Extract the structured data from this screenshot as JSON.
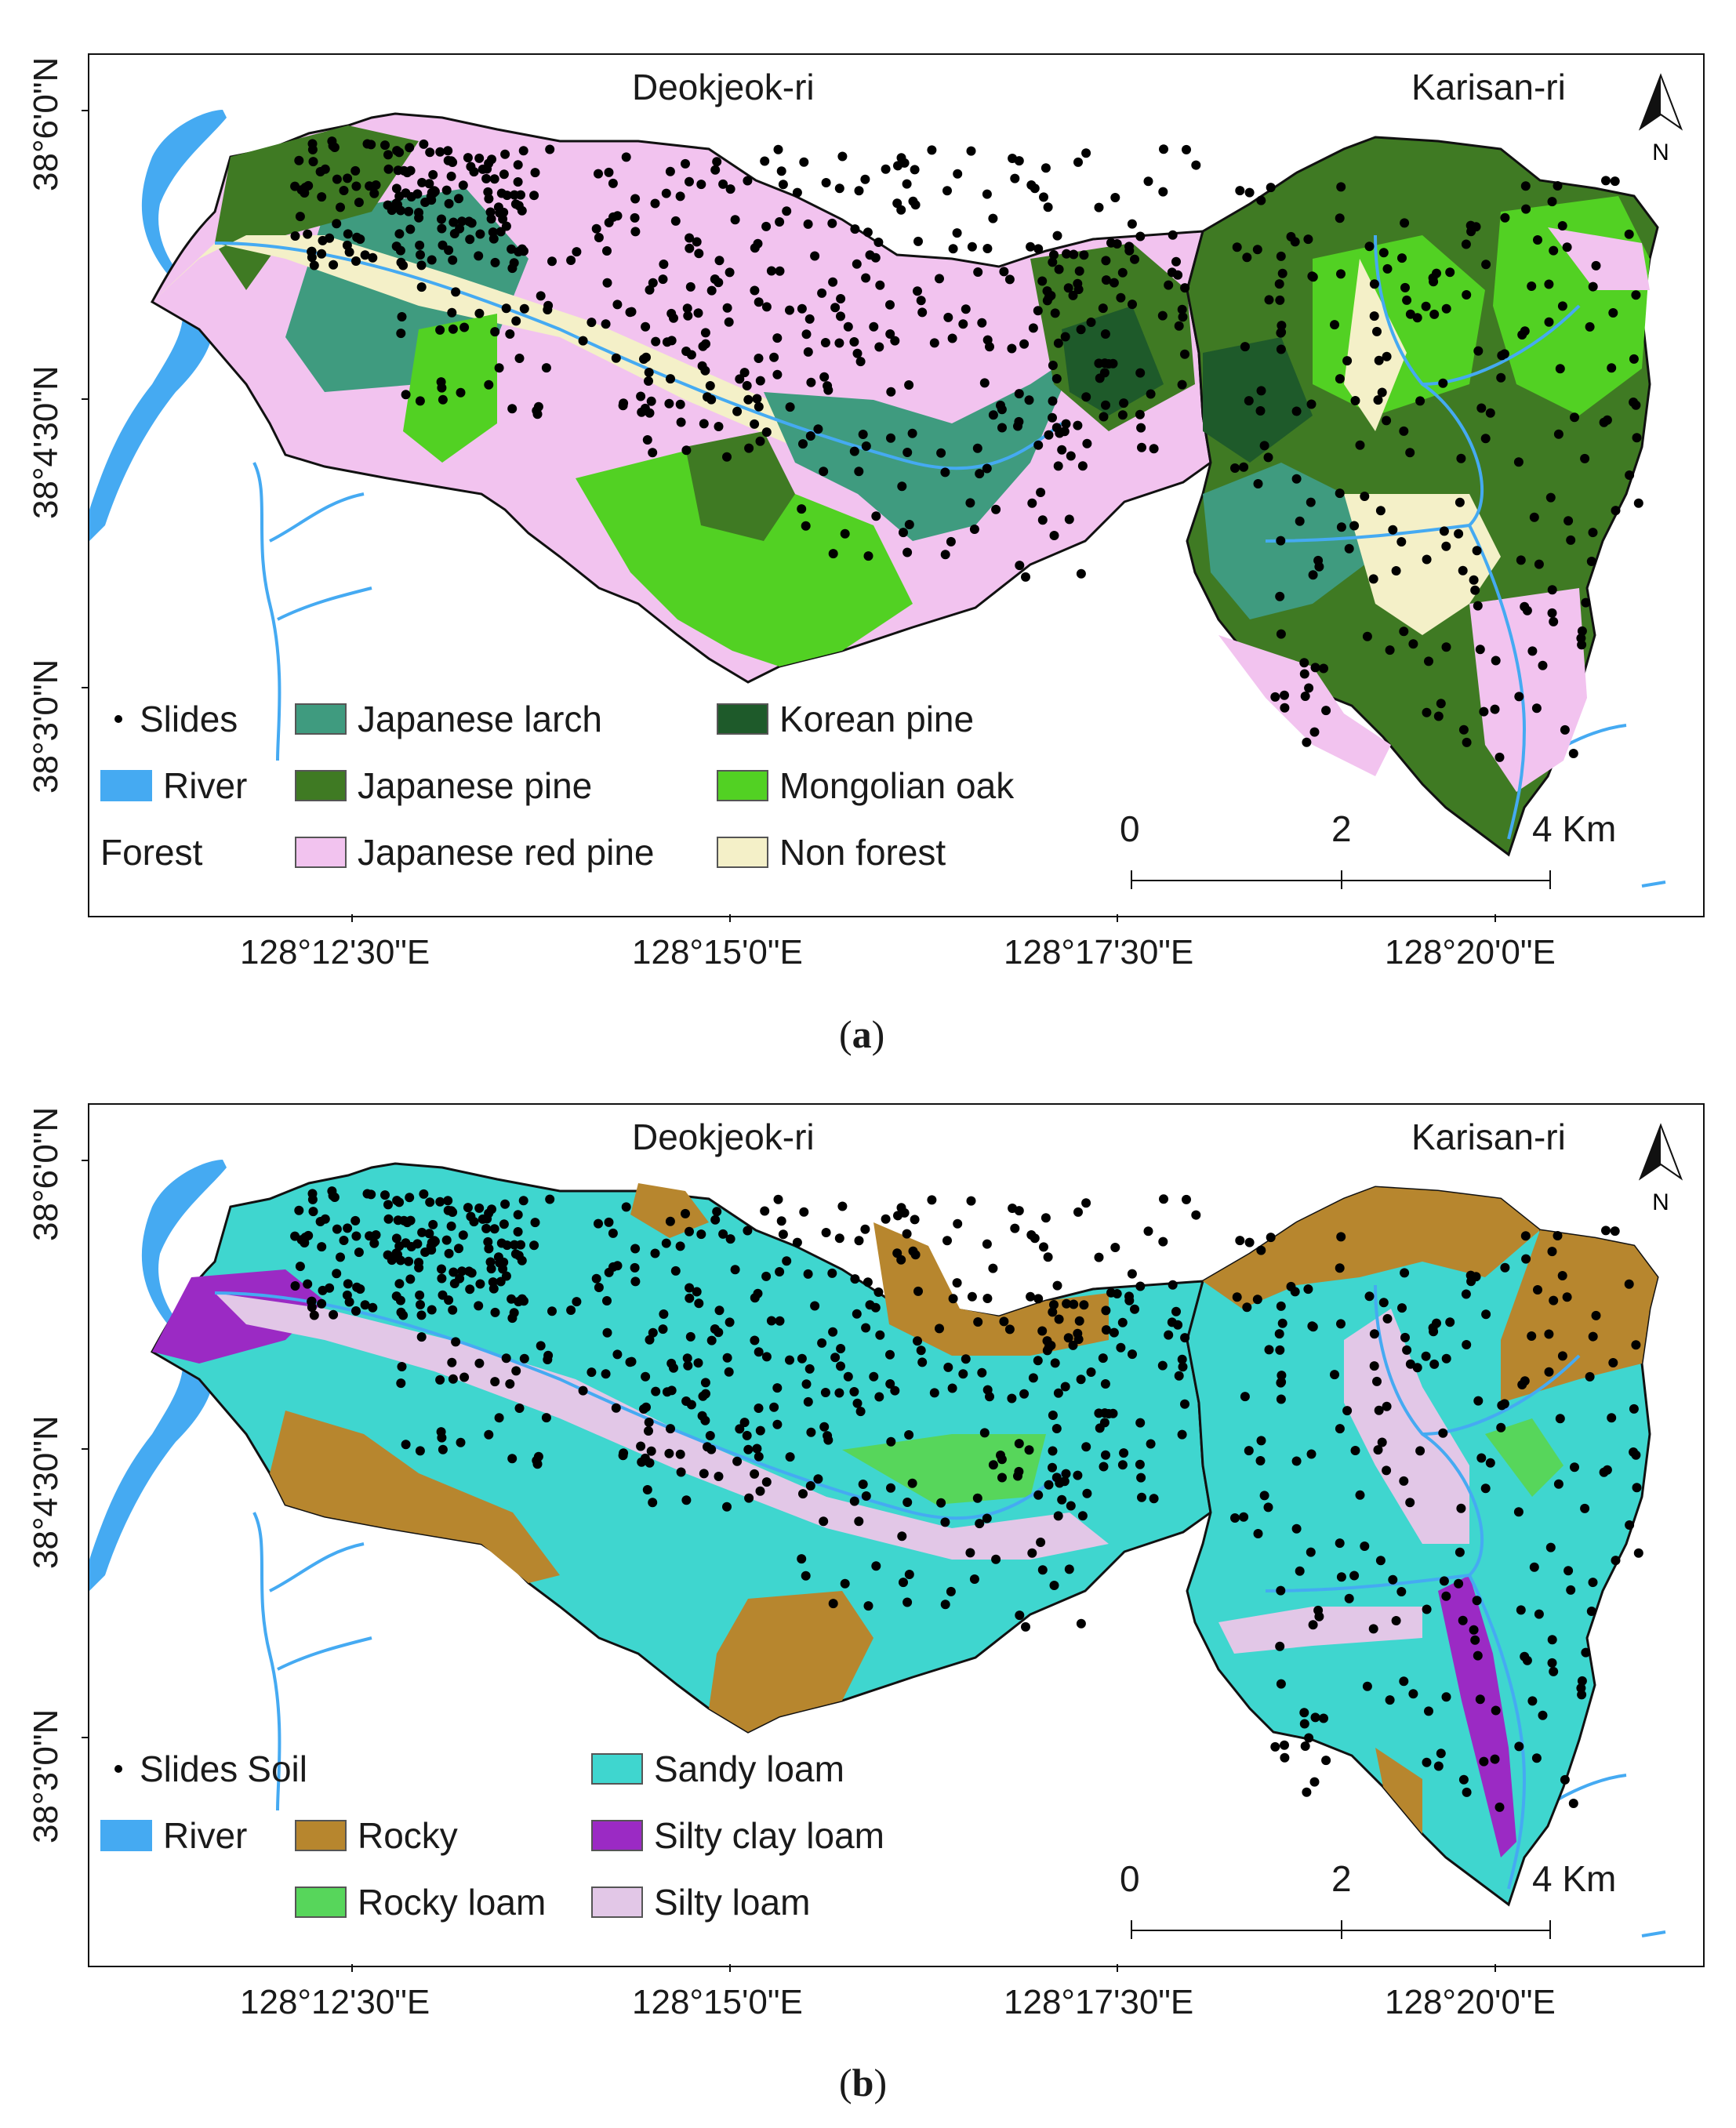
{
  "panels": [
    {
      "place_left": "Deokjeok-ri",
      "place_right": "Karisan-ri",
      "north": "N",
      "lat_labels": [
        "38°6'0\"N",
        "38°4'30\"N",
        "38°3'0\"N"
      ],
      "lon_labels": [
        "128°12'30\"E",
        "128°15'0\"E",
        "128°17'30\"E",
        "128°20'0\"E"
      ],
      "legend": {
        "slides": "Slides",
        "river": "River",
        "group": "Forest",
        "classes": [
          {
            "label": "Japanese larch",
            "color": "#3f9b7f"
          },
          {
            "label": "Korean pine",
            "color": "#1e5a2a"
          },
          {
            "label": "Japanese pine",
            "color": "#3f7a23"
          },
          {
            "label": "Mongolian oak",
            "color": "#52d123"
          },
          {
            "label": "Japanese red pine",
            "color": "#f2c3ef"
          },
          {
            "label": "Non forest",
            "color": "#f4f0c8"
          }
        ]
      },
      "scale": {
        "labels": [
          "0",
          "2",
          "4 Km"
        ]
      },
      "caption_open": "(",
      "caption_letter": "a",
      "caption_close": ")"
    },
    {
      "place_left": "Deokjeok-ri",
      "place_right": "Karisan-ri",
      "north": "N",
      "lat_labels": [
        "38°6'0\"N",
        "38°4'30\"N",
        "38°3'0\"N"
      ],
      "lon_labels": [
        "128°12'30\"E",
        "128°15'0\"E",
        "128°17'30\"E",
        "128°20'0\"E"
      ],
      "legend": {
        "slides": "Slides",
        "group": "Soil",
        "river": "River",
        "classes": [
          {
            "label": "Sandy loam",
            "color": "#3fd6cf"
          },
          {
            "label": "Rocky",
            "color": "#b7862e"
          },
          {
            "label": "Silty clay loam",
            "color": "#9b2ac4"
          },
          {
            "label": "Rocky loam",
            "color": "#57d65b"
          },
          {
            "label": "Silty loam",
            "color": "#e2c7e7"
          }
        ]
      },
      "scale": {
        "labels": [
          "0",
          "2",
          "4 Km"
        ]
      },
      "caption_open": "(",
      "caption_letter": "b",
      "caption_close": ")"
    }
  ],
  "colors": {
    "river": "#45aaf2",
    "slide": "#000000",
    "boundary": "#111111"
  }
}
